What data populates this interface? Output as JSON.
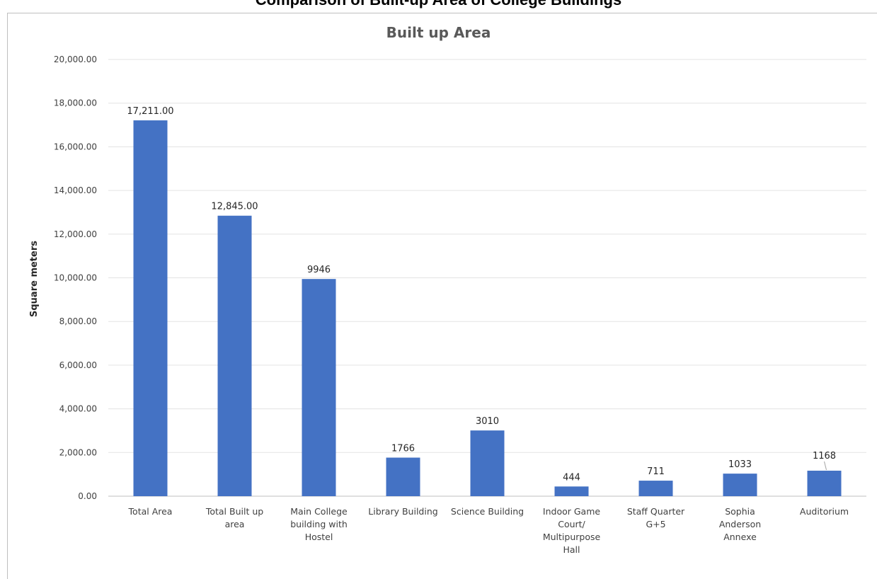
{
  "page_header": "Comparison of Built-up Area of College Buildings",
  "chart_data": {
    "type": "bar",
    "title": "Built up Area",
    "xlabel": "",
    "ylabel": "Square meters",
    "ylim": [
      0,
      20000
    ],
    "yticks": [
      0,
      2000,
      4000,
      6000,
      8000,
      10000,
      12000,
      14000,
      16000,
      18000,
      20000
    ],
    "ytick_labels": [
      "0.00",
      "2,000.00",
      "4,000.00",
      "6,000.00",
      "8,000.00",
      "10,000.00",
      "12,000.00",
      "14,000.00",
      "16,000.00",
      "18,000.00",
      "20,000.00"
    ],
    "grid": true,
    "bar_color": "#4472C4",
    "categories": [
      "Total Area",
      "Total Built up area",
      "Main College building with Hostel",
      "Library Building",
      "Science Building",
      "Indoor Game Court/ Multipurpose Hall",
      "Staff Quarter G+5",
      "Sophia Anderson Annexe",
      "Auditorium"
    ],
    "category_lines": [
      [
        "Total Area"
      ],
      [
        "Total Built up",
        "area"
      ],
      [
        "Main College",
        "building with",
        "Hostel"
      ],
      [
        "Library Building"
      ],
      [
        "Science Building"
      ],
      [
        "Indoor Game",
        "Court/",
        "Multipurpose",
        "Hall"
      ],
      [
        "Staff Quarter",
        "G+5"
      ],
      [
        "Sophia",
        "Anderson",
        "Annexe"
      ],
      [
        "Auditorium"
      ]
    ],
    "values": [
      17211,
      12845,
      9946,
      1766,
      3010,
      444,
      711,
      1033,
      1168
    ],
    "data_labels": [
      "17,211.00",
      "12,845.00",
      "9946",
      "1766",
      "3010",
      "444",
      "711",
      "1033",
      "1168"
    ]
  }
}
